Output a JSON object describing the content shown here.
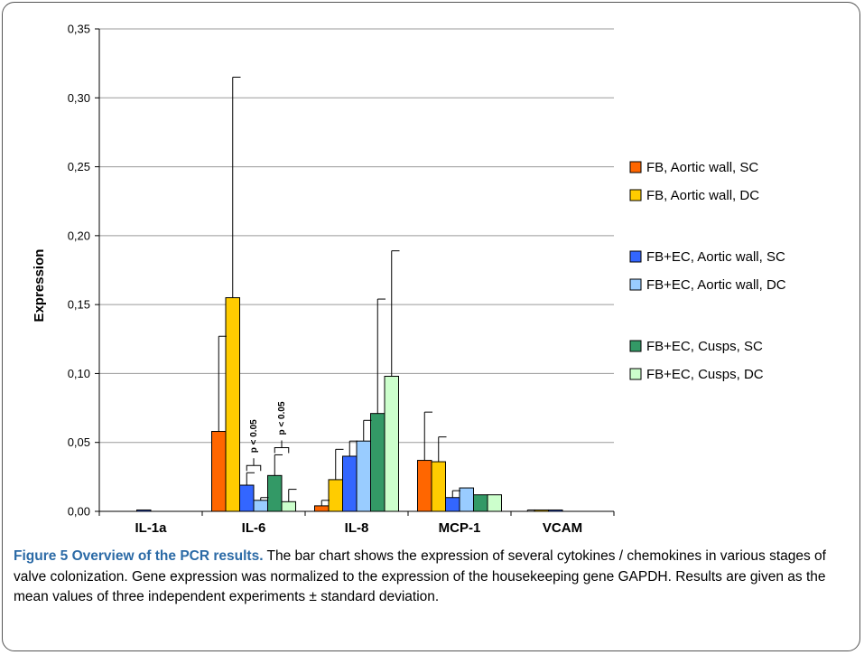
{
  "chart_data": {
    "type": "bar",
    "categories": [
      "IL-1a",
      "IL-6",
      "IL-8",
      "MCP-1",
      "VCAM"
    ],
    "ylabel": "Expression",
    "ylim": [
      0,
      0.35
    ],
    "yticks": [
      "0,00",
      "0,05",
      "0,10",
      "0,15",
      "0,20",
      "0,25",
      "0,30",
      "0,35"
    ],
    "grid": true,
    "legend_position": "right",
    "series": [
      {
        "name": "FB, Aortic wall, SC",
        "color": "#ff6600",
        "values": [
          0.0,
          0.058,
          0.004,
          0.037,
          0.0
        ],
        "errors": [
          0.0,
          0.069,
          0.004,
          0.035,
          0.001
        ]
      },
      {
        "name": "FB, Aortic wall, DC",
        "color": "#ffcc00",
        "values": [
          0.0,
          0.155,
          0.023,
          0.036,
          0.001
        ],
        "errors": [
          0.0,
          0.16,
          0.022,
          0.018,
          0.0
        ]
      },
      {
        "name": "FB+EC, Aortic wall, SC",
        "color": "#3366ff",
        "values": [
          0.001,
          0.019,
          0.04,
          0.01,
          0.001
        ],
        "errors": [
          0.0,
          0.009,
          0.011,
          0.005,
          0.0
        ]
      },
      {
        "name": "FB+EC, Aortic wall, DC",
        "color": "#99ccff",
        "values": [
          0.0,
          0.008,
          0.051,
          0.017,
          0.0
        ],
        "errors": [
          0.0,
          0.002,
          0.015,
          0.0,
          0.0
        ]
      },
      {
        "name": "FB+EC, Cusps, SC",
        "color": "#339966",
        "values": [
          0.0,
          0.026,
          0.071,
          0.012,
          0.0
        ],
        "errors": [
          0.0,
          0.015,
          0.083,
          0.0,
          0.0
        ]
      },
      {
        "name": "FB+EC, Cusps, DC",
        "color": "#ccffcc",
        "values": [
          0.0,
          0.007,
          0.098,
          0.012,
          0.0
        ],
        "errors": [
          0.0,
          0.009,
          0.091,
          0.0,
          0.0
        ]
      }
    ],
    "annotations": [
      {
        "text": "p < 0.05",
        "category": "IL-6",
        "between_series": [
          2,
          3
        ]
      },
      {
        "text": "p < 0.05",
        "category": "IL-6",
        "between_series": [
          4,
          5
        ]
      }
    ]
  },
  "caption": {
    "title": "Figure 5 Overview of the PCR results.",
    "text": " The bar chart shows the expression of several cytokines / chemokines in various stages of valve colonization. Gene expression was normalized to the expression of the housekeeping gene GAPDH. Results are given as the mean values of three independent experiments ± standard deviation."
  }
}
